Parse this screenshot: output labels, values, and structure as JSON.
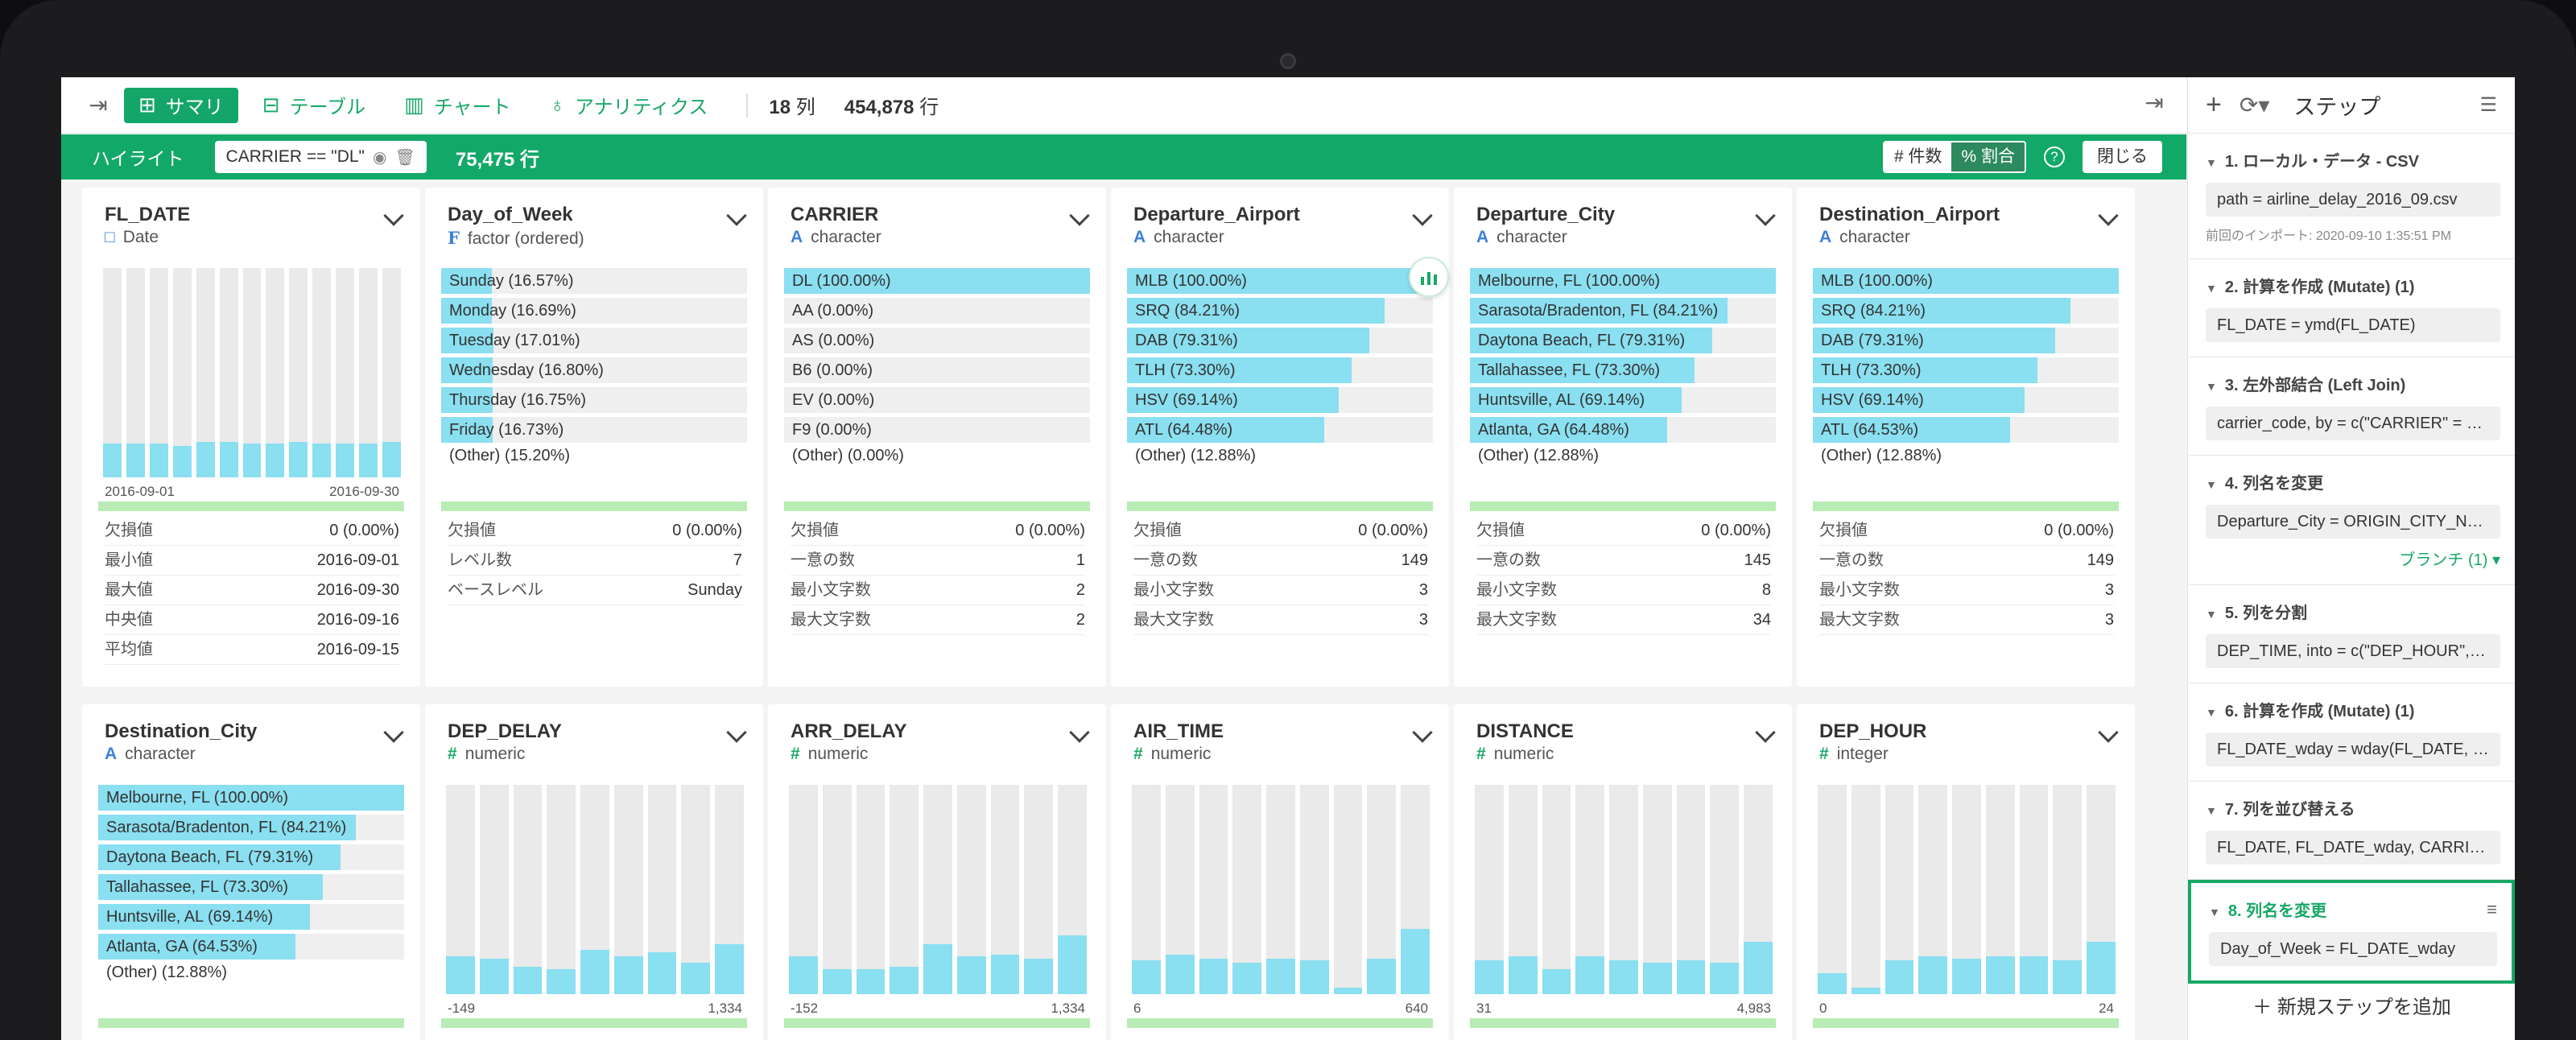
{
  "topbar": {
    "tabs": [
      {
        "label": "サマリ",
        "icon": "grid-icon",
        "active": true
      },
      {
        "label": "テーブル",
        "icon": "table-icon",
        "active": false
      },
      {
        "label": "チャート",
        "icon": "bar-chart-icon",
        "active": false
      },
      {
        "label": "アナリティクス",
        "icon": "bulb-icon",
        "active": false
      }
    ],
    "cols_num": "18",
    "cols_unit": "列",
    "rows_num": "454,878",
    "rows_unit": "行"
  },
  "highlight": {
    "label": "ハイライト",
    "filter": "CARRIER == \"DL\"",
    "rows": "75,475 行",
    "count_label": "# 件数",
    "ratio_label": "% 割合",
    "help": "?",
    "close": "閉じる"
  },
  "cards": [
    {
      "title": "FL_DATE",
      "type_icon": "□",
      "type": "Date",
      "kind": "hist",
      "hist": [
        0.16,
        0.16,
        0.16,
        0.15,
        0.17,
        0.17,
        0.16,
        0.16,
        0.17,
        0.16,
        0.16,
        0.16,
        0.17
      ],
      "axis_min": "2016-09-01",
      "axis_max": "2016-09-30",
      "stats": [
        [
          "欠損値",
          "0 (0.00%)"
        ],
        [
          "最小値",
          "2016-09-01"
        ],
        [
          "最大値",
          "2016-09-30"
        ],
        [
          "中央値",
          "2016-09-16"
        ],
        [
          "平均値",
          "2016-09-15"
        ]
      ]
    },
    {
      "title": "Day_of_Week",
      "type_icon": "F",
      "type": "factor (ordered)",
      "kind": "bars",
      "bars": [
        [
          "Sunday (16.57%)",
          16.57
        ],
        [
          "Monday (16.69%)",
          16.69
        ],
        [
          "Tuesday (17.01%)",
          17.01
        ],
        [
          "Wednesday (16.80%)",
          16.8
        ],
        [
          "Thursday (16.75%)",
          16.75
        ],
        [
          "Friday (16.73%)",
          16.73
        ]
      ],
      "other": "(Other) (15.20%)",
      "stats": [
        [
          "欠損値",
          "0 (0.00%)"
        ],
        [
          "レベル数",
          "7"
        ],
        [
          "ベースレベル",
          "Sunday"
        ]
      ]
    },
    {
      "title": "CARRIER",
      "type_icon": "A",
      "type": "character",
      "kind": "bars",
      "bars": [
        [
          "DL (100.00%)",
          100
        ],
        [
          "AA (0.00%)",
          0
        ],
        [
          "AS (0.00%)",
          0
        ],
        [
          "B6 (0.00%)",
          0
        ],
        [
          "EV (0.00%)",
          0
        ],
        [
          "F9 (0.00%)",
          0
        ]
      ],
      "other": "(Other) (0.00%)",
      "stats": [
        [
          "欠損値",
          "0 (0.00%)"
        ],
        [
          "一意の数",
          "1"
        ],
        [
          "最小文字数",
          "2"
        ],
        [
          "最大文字数",
          "2"
        ]
      ]
    },
    {
      "title": "Departure_Airport",
      "type_icon": "A",
      "type": "character",
      "kind": "bars",
      "bars": [
        [
          "MLB (100.00%)",
          100
        ],
        [
          "SRQ (84.21%)",
          84.21
        ],
        [
          "DAB (79.31%)",
          79.31
        ],
        [
          "TLH (73.30%)",
          73.3
        ],
        [
          "HSV (69.14%)",
          69.14
        ],
        [
          "ATL (64.48%)",
          64.48
        ]
      ],
      "other": "(Other) (12.88%)",
      "stats": [
        [
          "欠損値",
          "0 (0.00%)"
        ],
        [
          "一意の数",
          "149"
        ],
        [
          "最小文字数",
          "3"
        ],
        [
          "最大文字数",
          "3"
        ]
      ]
    },
    {
      "title": "Departure_City",
      "type_icon": "A",
      "type": "character",
      "kind": "bars",
      "bars": [
        [
          "Melbourne, FL (100.00%)",
          100
        ],
        [
          "Sarasota/Bradenton, FL (84.21%)",
          84.21
        ],
        [
          "Daytona Beach, FL (79.31%)",
          79.31
        ],
        [
          "Tallahassee, FL (73.30%)",
          73.3
        ],
        [
          "Huntsville, AL (69.14%)",
          69.14
        ],
        [
          "Atlanta, GA (64.48%)",
          64.48
        ]
      ],
      "other": "(Other) (12.88%)",
      "stats": [
        [
          "欠損値",
          "0 (0.00%)"
        ],
        [
          "一意の数",
          "145"
        ],
        [
          "最小文字数",
          "8"
        ],
        [
          "最大文字数",
          "34"
        ]
      ]
    },
    {
      "title": "Destination_Airport",
      "type_icon": "A",
      "type": "character",
      "kind": "bars",
      "bars": [
        [
          "MLB (100.00%)",
          100
        ],
        [
          "SRQ (84.21%)",
          84.21
        ],
        [
          "DAB (79.31%)",
          79.31
        ],
        [
          "TLH (73.30%)",
          73.3
        ],
        [
          "HSV (69.14%)",
          69.14
        ],
        [
          "ATL (64.53%)",
          64.53
        ]
      ],
      "other": "(Other) (12.88%)",
      "stats": [
        [
          "欠損値",
          "0 (0.00%)"
        ],
        [
          "一意の数",
          "149"
        ],
        [
          "最小文字数",
          "3"
        ],
        [
          "最大文字数",
          "3"
        ]
      ]
    },
    {
      "title": "Destination_City",
      "type_icon": "A",
      "type": "character",
      "kind": "bars",
      "bars": [
        [
          "Melbourne, FL (100.00%)",
          100
        ],
        [
          "Sarasota/Bradenton, FL (84.21%)",
          84.21
        ],
        [
          "Daytona Beach, FL (79.31%)",
          79.31
        ],
        [
          "Tallahassee, FL (73.30%)",
          73.3
        ],
        [
          "Huntsville, AL (69.14%)",
          69.14
        ],
        [
          "Atlanta, GA (64.53%)",
          64.53
        ]
      ],
      "other": "(Other) (12.88%)",
      "stats": []
    },
    {
      "title": "DEP_DELAY",
      "type_icon": "#",
      "type": "numeric",
      "kind": "hist",
      "hist": [
        0.18,
        0.17,
        0.13,
        0.12,
        0.21,
        0.18,
        0.2,
        0.15,
        0.24
      ],
      "axis_min": "-149",
      "axis_max": "1,334",
      "stats": []
    },
    {
      "title": "ARR_DELAY",
      "type_icon": "#",
      "type": "numeric",
      "kind": "hist",
      "hist": [
        0.18,
        0.12,
        0.12,
        0.13,
        0.24,
        0.18,
        0.19,
        0.17,
        0.28
      ],
      "axis_min": "-152",
      "axis_max": "1,334",
      "stats": []
    },
    {
      "title": "AIR_TIME",
      "type_icon": "#",
      "type": "numeric",
      "kind": "hist",
      "hist": [
        0.16,
        0.19,
        0.17,
        0.15,
        0.17,
        0.16,
        0.03,
        0.17,
        0.31
      ],
      "axis_min": "6",
      "axis_max": "640",
      "stats": []
    },
    {
      "title": "DISTANCE",
      "type_icon": "#",
      "type": "numeric",
      "kind": "hist",
      "hist": [
        0.16,
        0.18,
        0.12,
        0.18,
        0.16,
        0.15,
        0.16,
        0.15,
        0.25
      ],
      "axis_min": "31",
      "axis_max": "4,983",
      "stats": []
    },
    {
      "title": "DEP_HOUR",
      "type_icon": "#",
      "type": "integer",
      "kind": "hist",
      "hist": [
        0.1,
        0.03,
        0.16,
        0.18,
        0.17,
        0.18,
        0.18,
        0.16,
        0.25
      ],
      "axis_min": "0",
      "axis_max": "24",
      "stats": []
    }
  ],
  "panel": {
    "title": "ステップ",
    "steps": [
      {
        "title": "1. ローカル・データ - CSV",
        "box": "<b></b>path = airline_delay_2016_09.csv",
        "sub": "前回のインポート: 2020-09-10 1:35:51 PM"
      },
      {
        "title": "2. 計算を作成 (Mutate) (1)",
        "box": "FL_DATE = ymd(FL_DATE)"
      },
      {
        "title": "3. 左外部結合 (Left Join)",
        "box": "carrier_code, by = c(\"CARRIER\" = …"
      },
      {
        "title": "4. 列名を変更",
        "box": "Departure_City = ORIGIN_CITY_N…",
        "branch": "ブランチ (1) ▾"
      },
      {
        "title": "5. 列を分割",
        "box": "DEP_TIME, into = c(\"DEP_HOUR\", …"
      },
      {
        "title": "6. 計算を作成 (Mutate) (1)",
        "box": "FL_DATE_wday = wday(FL_DATE, l…"
      },
      {
        "title": "7. 列を並び替える",
        "box": "FL_DATE, FL_DATE_wday, CARRI…"
      },
      {
        "title": "8. 列名を変更",
        "box": "Day_of_Week = FL_DATE_wday",
        "active": true
      }
    ],
    "new_step": "新規ステップを追加"
  }
}
